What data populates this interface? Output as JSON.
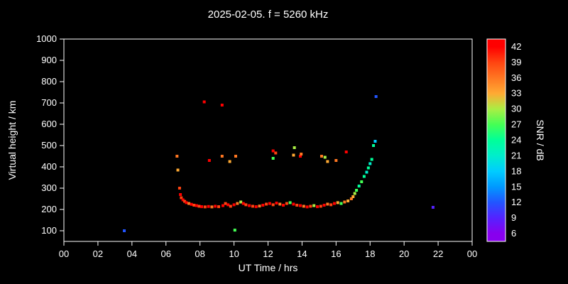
{
  "title": "2025-02-05. f = 5260 kHz",
  "chart_data": {
    "type": "scatter",
    "title": "2025-02-05. f = 5260 kHz",
    "xlabel": "UT Time / hrs",
    "ylabel": "Virtual height / km",
    "colorbar_label": "SNR / dB",
    "background": "#000000",
    "axis_color": "#ffffff",
    "grid": false,
    "legend_position": "right-colorbar",
    "xlim": [
      0,
      24
    ],
    "ylim": [
      50,
      1000
    ],
    "xticks": {
      "values": [
        0,
        2,
        4,
        6,
        8,
        10,
        12,
        14,
        16,
        18,
        20,
        22,
        24
      ],
      "labels": [
        "00",
        "02",
        "04",
        "06",
        "08",
        "10",
        "12",
        "14",
        "16",
        "18",
        "20",
        "22",
        "00"
      ]
    },
    "yticks": [
      100,
      200,
      300,
      400,
      500,
      600,
      700,
      800,
      900,
      1000
    ],
    "snr_scale": {
      "values": [
        6,
        9,
        12,
        15,
        18,
        21,
        24,
        27,
        30,
        33,
        36,
        39,
        42
      ],
      "colors": [
        "#8800ee",
        "#5522ff",
        "#2255ff",
        "#0099ff",
        "#00ccff",
        "#00eecc",
        "#00ff99",
        "#44ff55",
        "#aaee44",
        "#ffaa33",
        "#ff7722",
        "#ff4411",
        "#ff0000"
      ]
    },
    "points_format": [
      "ut_hours",
      "virtual_height_km",
      "snr_db"
    ],
    "points": [
      [
        3.55,
        100,
        12
      ],
      [
        8.25,
        705,
        42
      ],
      [
        9.3,
        690,
        42
      ],
      [
        10.05,
        103,
        27
      ],
      [
        18.35,
        730,
        12
      ],
      [
        21.7,
        210,
        9
      ],
      [
        6.65,
        450,
        36
      ],
      [
        6.7,
        385,
        33
      ],
      [
        8.55,
        430,
        42
      ],
      [
        9.3,
        450,
        36
      ],
      [
        9.75,
        425,
        33
      ],
      [
        10.1,
        450,
        36
      ],
      [
        12.3,
        475,
        42
      ],
      [
        12.45,
        465,
        39
      ],
      [
        12.3,
        440,
        27
      ],
      [
        13.55,
        490,
        30
      ],
      [
        13.5,
        455,
        33
      ],
      [
        13.9,
        450,
        42
      ],
      [
        13.95,
        460,
        36
      ],
      [
        15.15,
        450,
        36
      ],
      [
        15.35,
        445,
        30
      ],
      [
        15.5,
        425,
        33
      ],
      [
        16.0,
        430,
        36
      ],
      [
        16.6,
        470,
        42
      ],
      [
        6.8,
        300,
        39
      ],
      [
        6.85,
        270,
        42
      ],
      [
        6.9,
        255,
        39
      ],
      [
        7.0,
        245,
        42
      ],
      [
        7.1,
        238,
        39
      ],
      [
        7.2,
        232,
        42
      ],
      [
        7.35,
        228,
        36
      ],
      [
        7.5,
        224,
        42
      ],
      [
        7.65,
        220,
        39
      ],
      [
        7.8,
        218,
        42
      ],
      [
        7.95,
        215,
        39
      ],
      [
        8.1,
        213,
        42
      ],
      [
        8.3,
        212,
        39
      ],
      [
        8.5,
        214,
        42
      ],
      [
        8.7,
        212,
        36
      ],
      [
        8.9,
        215,
        42
      ],
      [
        9.1,
        213,
        39
      ],
      [
        9.35,
        218,
        42
      ],
      [
        9.5,
        228,
        39
      ],
      [
        9.65,
        222,
        42
      ],
      [
        9.8,
        215,
        39
      ],
      [
        10.0,
        222,
        42
      ],
      [
        10.2,
        228,
        36
      ],
      [
        10.4,
        235,
        30
      ],
      [
        10.55,
        228,
        42
      ],
      [
        10.7,
        222,
        39
      ],
      [
        10.9,
        218,
        42
      ],
      [
        11.1,
        215,
        39
      ],
      [
        11.3,
        213,
        42
      ],
      [
        11.5,
        216,
        36
      ],
      [
        11.7,
        220,
        42
      ],
      [
        11.9,
        225,
        39
      ],
      [
        12.1,
        228,
        42
      ],
      [
        12.3,
        222,
        39
      ],
      [
        12.5,
        230,
        42
      ],
      [
        12.7,
        225,
        36
      ],
      [
        12.9,
        220,
        42
      ],
      [
        13.1,
        228,
        39
      ],
      [
        13.3,
        232,
        27
      ],
      [
        13.5,
        225,
        42
      ],
      [
        13.7,
        220,
        39
      ],
      [
        13.9,
        218,
        42
      ],
      [
        14.1,
        215,
        36
      ],
      [
        14.3,
        212,
        42
      ],
      [
        14.5,
        215,
        39
      ],
      [
        14.7,
        218,
        30
      ],
      [
        14.9,
        213,
        42
      ],
      [
        15.1,
        215,
        39
      ],
      [
        15.3,
        220,
        42
      ],
      [
        15.5,
        225,
        36
      ],
      [
        15.7,
        222,
        39
      ],
      [
        15.9,
        228,
        42
      ],
      [
        16.1,
        232,
        33
      ],
      [
        16.3,
        228,
        27
      ],
      [
        16.5,
        235,
        36
      ],
      [
        16.7,
        240,
        33
      ],
      [
        16.9,
        250,
        36
      ],
      [
        17.0,
        260,
        33
      ],
      [
        17.1,
        275,
        30
      ],
      [
        17.2,
        290,
        27
      ],
      [
        17.35,
        310,
        24
      ],
      [
        17.5,
        330,
        27
      ],
      [
        17.65,
        355,
        24
      ],
      [
        17.8,
        375,
        21
      ],
      [
        17.9,
        395,
        24
      ],
      [
        18.0,
        415,
        21
      ],
      [
        18.1,
        435,
        24
      ],
      [
        18.2,
        500,
        24
      ],
      [
        18.3,
        520,
        18
      ]
    ]
  }
}
